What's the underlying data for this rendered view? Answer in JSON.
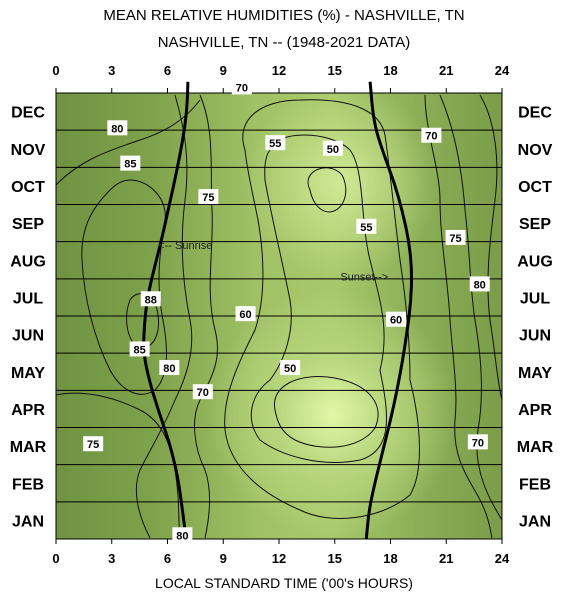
{
  "chart_data": {
    "type": "heatmap",
    "title": "MEAN RELATIVE HUMIDITIES (%) - NASHVILLE, TN",
    "subtitle": "NASHVILLE, TN -- (1948-2021 DATA)",
    "xlabel": "LOCAL STANDARD TIME ('00's HOURS)",
    "ylabel": "",
    "xlim": [
      0,
      24
    ],
    "x_ticks": [
      "0",
      "3",
      "6",
      "9",
      "12",
      "15",
      "18",
      "21",
      "24"
    ],
    "x_tick_values": [
      0,
      3,
      6,
      9,
      12,
      15,
      18,
      21,
      24
    ],
    "months": [
      "JAN",
      "FEB",
      "MAR",
      "APR",
      "MAY",
      "JUN",
      "JUL",
      "AUG",
      "SEP",
      "OCT",
      "NOV",
      "DEC"
    ],
    "contour_levels": [
      50,
      55,
      60,
      70,
      75,
      80,
      85,
      88
    ],
    "contour_labels": [
      {
        "text": "70",
        "hour": 10.0,
        "month": 12.15
      },
      {
        "text": "80",
        "hour": 3.3,
        "month": 11.05
      },
      {
        "text": "70",
        "hour": 20.2,
        "month": 10.85
      },
      {
        "text": "55",
        "hour": 11.8,
        "month": 10.65
      },
      {
        "text": "50",
        "hour": 14.9,
        "month": 10.5
      },
      {
        "text": "85",
        "hour": 4.0,
        "month": 10.1
      },
      {
        "text": "75",
        "hour": 8.2,
        "month": 9.2
      },
      {
        "text": "55",
        "hour": 16.7,
        "month": 8.4
      },
      {
        "text": "75",
        "hour": 21.5,
        "month": 8.1
      },
      {
        "text": "80",
        "hour": 22.8,
        "month": 6.85
      },
      {
        "text": "88",
        "hour": 5.1,
        "month": 6.45
      },
      {
        "text": "60",
        "hour": 10.2,
        "month": 6.05
      },
      {
        "text": "60",
        "hour": 18.3,
        "month": 5.9
      },
      {
        "text": "85",
        "hour": 4.5,
        "month": 5.1
      },
      {
        "text": "80",
        "hour": 6.1,
        "month": 4.6
      },
      {
        "text": "50",
        "hour": 12.6,
        "month": 4.6
      },
      {
        "text": "70",
        "hour": 7.9,
        "month": 3.95
      },
      {
        "text": "75",
        "hour": 2.0,
        "month": 2.55
      },
      {
        "text": "70",
        "hour": 22.7,
        "month": 2.6
      },
      {
        "text": "80",
        "hour": 6.8,
        "month": 0.1
      }
    ],
    "sunrise": [
      [
        7.0,
        0.0
      ],
      [
        6.8,
        0.8
      ],
      [
        6.55,
        1.7
      ],
      [
        6.1,
        2.6
      ],
      [
        5.55,
        3.4
      ],
      [
        5.05,
        4.2
      ],
      [
        4.7,
        5.0
      ],
      [
        4.75,
        5.8
      ],
      [
        4.95,
        6.6
      ],
      [
        5.35,
        7.4
      ],
      [
        5.75,
        8.2
      ],
      [
        6.1,
        9.0
      ],
      [
        6.5,
        9.9
      ],
      [
        6.85,
        10.8
      ],
      [
        7.05,
        11.6
      ],
      [
        7.1,
        12.3
      ]
    ],
    "sunset": [
      [
        16.7,
        0.0
      ],
      [
        16.85,
        0.8
      ],
      [
        17.2,
        1.6
      ],
      [
        17.6,
        2.4
      ],
      [
        18.0,
        3.2
      ],
      [
        18.35,
        4.0
      ],
      [
        18.65,
        4.8
      ],
      [
        18.9,
        5.6
      ],
      [
        19.1,
        6.4
      ],
      [
        19.15,
        7.2
      ],
      [
        19.0,
        8.0
      ],
      [
        18.65,
        8.8
      ],
      [
        18.2,
        9.6
      ],
      [
        17.6,
        10.4
      ],
      [
        17.1,
        11.2
      ],
      [
        16.9,
        12.3
      ]
    ],
    "annotations": [
      {
        "text": "<-- Sunrise",
        "hour": 5.5,
        "month": 7.8
      },
      {
        "text": "Sunset-->",
        "hour": 15.3,
        "month": 6.95
      }
    ],
    "colors": {
      "humid": "#6e9140",
      "dry": "#d8f29a",
      "gridline": "#000000"
    }
  }
}
